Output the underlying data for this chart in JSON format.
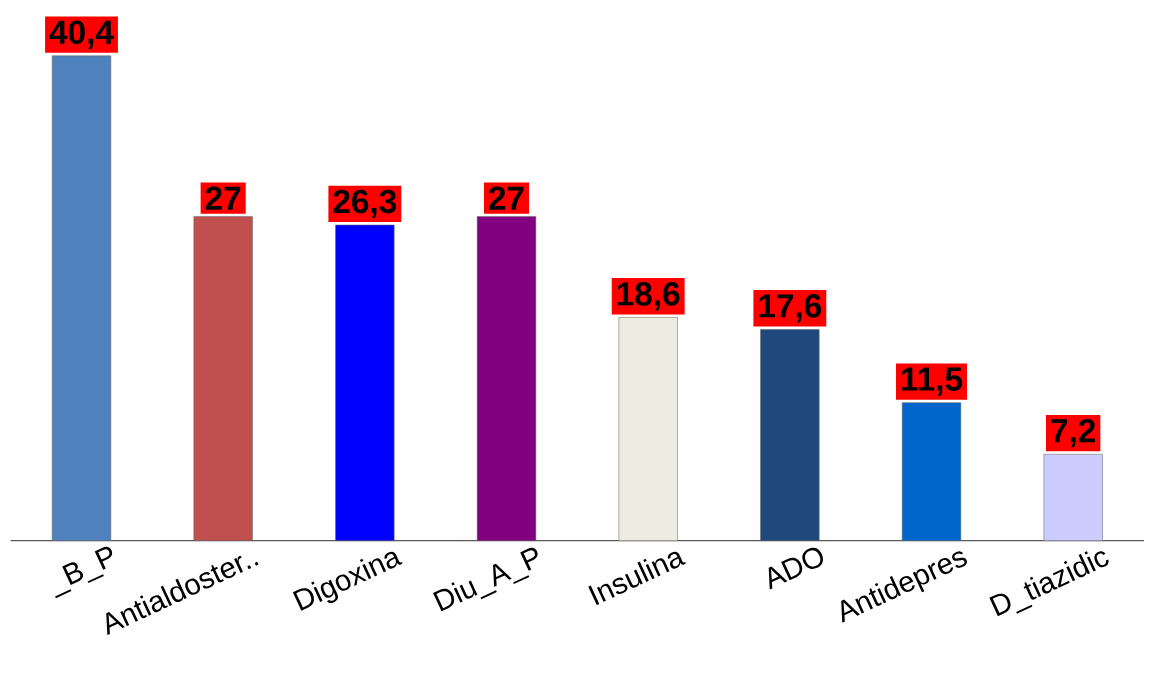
{
  "chart_data": {
    "type": "bar",
    "categories": [
      "_B_P",
      "Antialdoster..",
      "Digoxina",
      "Diu_A_P",
      "Insulina",
      "ADO",
      "Antidepres",
      "D_tiazidic"
    ],
    "values": [
      40.4,
      27,
      26.3,
      27,
      18.6,
      17.6,
      11.5,
      7.2
    ],
    "colors": [
      "#4f81bd",
      "#c0504d",
      "#0000ff",
      "#800080",
      "#eeece1",
      "#1f497d",
      "#0066cc",
      "#ccccff"
    ],
    "value_labels": [
      "40,4",
      "27",
      "26,3",
      "27",
      "18,6",
      "17,6",
      "11,5",
      "7,2"
    ]
  }
}
